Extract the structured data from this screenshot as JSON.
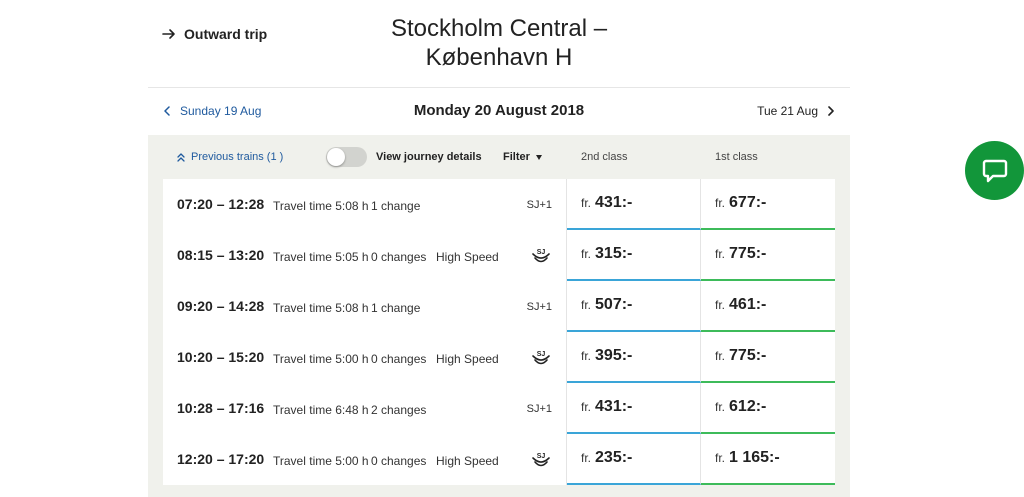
{
  "header": {
    "outward_label": "Outward trip",
    "route_line1": "Stockholm Central –",
    "route_line2": "København H"
  },
  "datebar": {
    "prev_day": "Sunday 19 Aug",
    "current_day": "Monday 20 August 2018",
    "next_day": "Tue 21 Aug"
  },
  "controls": {
    "previous_trains": "Previous trains (1 )",
    "view_details": "View journey details",
    "view_details_on": false,
    "filter": "Filter",
    "col_second": "2nd class",
    "col_first": "1st class"
  },
  "journeys": [
    {
      "times": "07:20 – 12:28",
      "travel": "Travel time 5:08 h",
      "changes": "1 change",
      "speed": "",
      "operator": "SJ+1",
      "operator_icon": "",
      "price2": "431:-",
      "price1": "677:-"
    },
    {
      "times": "08:15 – 13:20",
      "travel": "Travel time 5:05 h",
      "changes": "0 changes",
      "speed": "High Speed",
      "operator": "",
      "operator_icon": "sj-logo-icon",
      "price2": "315:-",
      "price1": "775:-"
    },
    {
      "times": "09:20 – 14:28",
      "travel": "Travel time 5:08 h",
      "changes": "1 change",
      "speed": "",
      "operator": "SJ+1",
      "operator_icon": "",
      "price2": "507:-",
      "price1": "461:-"
    },
    {
      "times": "10:20 – 15:20",
      "travel": "Travel time 5:00 h",
      "changes": "0 changes",
      "speed": "High Speed",
      "operator": "",
      "operator_icon": "sj-logo-icon",
      "price2": "395:-",
      "price1": "775:-"
    },
    {
      "times": "10:28 – 17:16",
      "travel": "Travel time 6:48 h",
      "changes": "2 changes",
      "speed": "",
      "operator": "SJ+1",
      "operator_icon": "",
      "price2": "431:-",
      "price1": "612:-"
    },
    {
      "times": "12:20 – 17:20",
      "travel": "Travel time 5:00 h",
      "changes": "0 changes",
      "speed": "High Speed",
      "operator": "",
      "operator_icon": "sj-logo-icon",
      "price2": "235:-",
      "price1": "1 165:-"
    }
  ],
  "price_prefix": "fr.",
  "colors": {
    "link": "#1f5a9e",
    "second_class_accent": "#3aa5d8",
    "first_class_accent": "#3dbb5a",
    "chat": "#12963a",
    "panel_bg": "#f0f1ec"
  },
  "icons": {
    "outward": "arrow-right-icon",
    "prev_day": "chevron-left-icon",
    "next_day": "chevron-right-icon",
    "previous_trains": "double-chevron-up-icon",
    "filter": "caret-down-icon",
    "chat": "chat-bubble-icon"
  }
}
